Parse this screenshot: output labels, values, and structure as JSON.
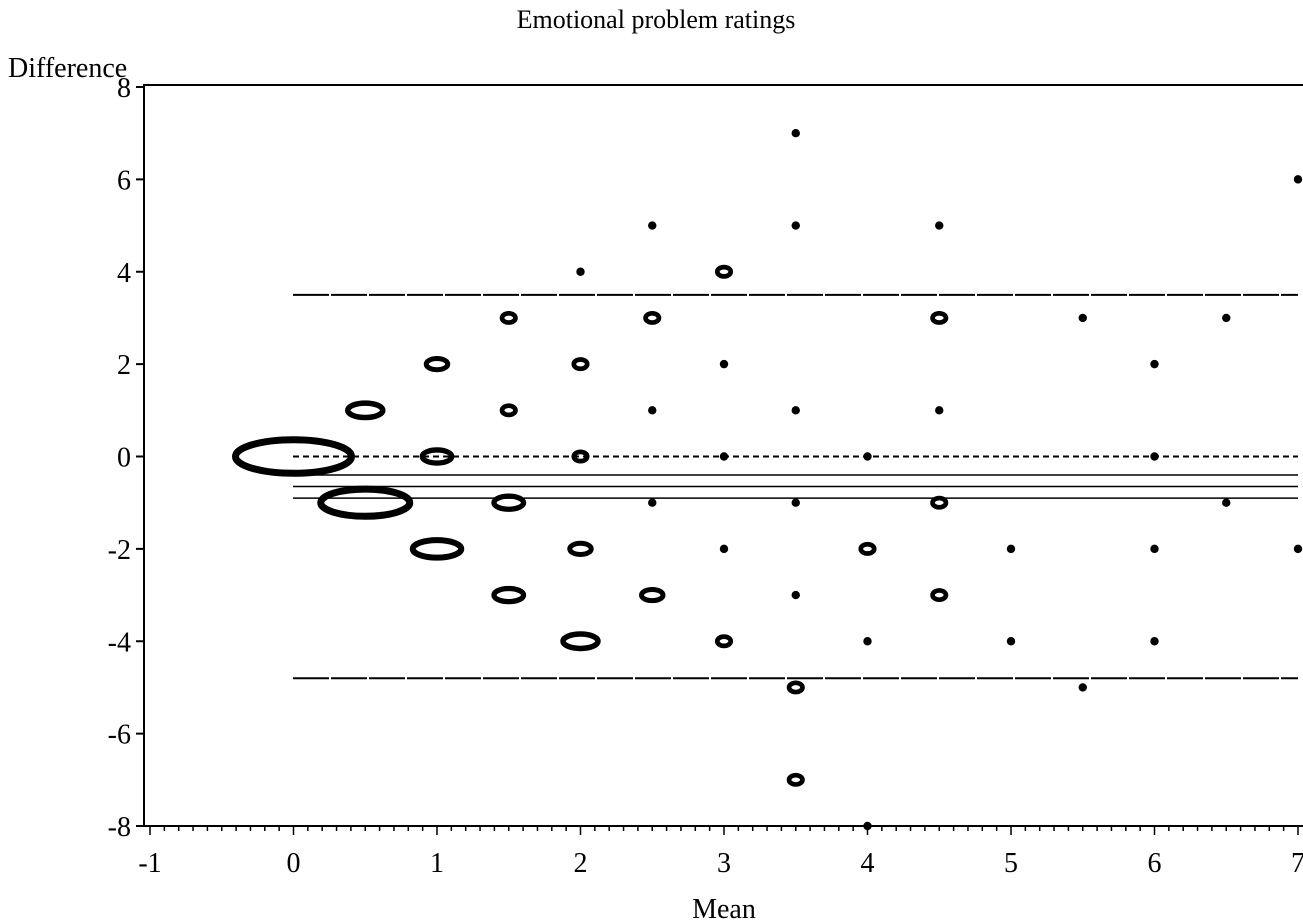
{
  "chart_data": {
    "type": "scatter",
    "title": "Emotional problem ratings",
    "xlabel": "Mean",
    "ylabel": "Difference",
    "xlim": [
      -1,
      7
    ],
    "ylim": [
      -8,
      8
    ],
    "x_ticks": [
      -1,
      0,
      1,
      2,
      3,
      4,
      5,
      6,
      7
    ],
    "y_ticks": [
      -8,
      -6,
      -4,
      -2,
      0,
      2,
      4,
      6,
      8
    ],
    "grid": false,
    "legend": "none",
    "reference_lines": [
      {
        "y": 0,
        "style": "dotted"
      },
      {
        "y": -0.4,
        "style": "solid"
      },
      {
        "y": -0.65,
        "style": "solid"
      },
      {
        "y": -0.9,
        "style": "solid"
      },
      {
        "y": 3.5,
        "style": "long-dash"
      },
      {
        "y": -4.8,
        "style": "long-dash"
      }
    ],
    "points": [
      {
        "x": 0,
        "y": 0,
        "size": 5
      },
      {
        "x": 0.5,
        "y": 1,
        "size": 2
      },
      {
        "x": 0.5,
        "y": -1,
        "size": 4
      },
      {
        "x": 1,
        "y": 2,
        "size": 1.5
      },
      {
        "x": 1,
        "y": 0,
        "size": 1.8
      },
      {
        "x": 1,
        "y": -2,
        "size": 2.5
      },
      {
        "x": 1.5,
        "y": 3,
        "size": 1.2
      },
      {
        "x": 1.5,
        "y": 1,
        "size": 1.2
      },
      {
        "x": 1.5,
        "y": -1,
        "size": 1.8
      },
      {
        "x": 1.5,
        "y": -3,
        "size": 1.8
      },
      {
        "x": 2,
        "y": 4,
        "size": 1
      },
      {
        "x": 2,
        "y": 2,
        "size": 1.2
      },
      {
        "x": 2,
        "y": 0,
        "size": 1.2
      },
      {
        "x": 2,
        "y": -2,
        "size": 1.5
      },
      {
        "x": 2,
        "y": -4,
        "size": 2
      },
      {
        "x": 2.5,
        "y": 5,
        "size": 1
      },
      {
        "x": 2.5,
        "y": 3,
        "size": 1.2
      },
      {
        "x": 2.5,
        "y": 1,
        "size": 1
      },
      {
        "x": 2.5,
        "y": -1,
        "size": 1
      },
      {
        "x": 2.5,
        "y": -3,
        "size": 1.5
      },
      {
        "x": 3,
        "y": 4,
        "size": 1.2
      },
      {
        "x": 3,
        "y": 2,
        "size": 1
      },
      {
        "x": 3,
        "y": 0,
        "size": 1
      },
      {
        "x": 3,
        "y": -2,
        "size": 1
      },
      {
        "x": 3,
        "y": -4,
        "size": 1.2
      },
      {
        "x": 3.5,
        "y": 7,
        "size": 1
      },
      {
        "x": 3.5,
        "y": 5,
        "size": 1
      },
      {
        "x": 3.5,
        "y": 1,
        "size": 1
      },
      {
        "x": 3.5,
        "y": -1,
        "size": 1
      },
      {
        "x": 3.5,
        "y": -3,
        "size": 1
      },
      {
        "x": 3.5,
        "y": -5,
        "size": 1.2
      },
      {
        "x": 3.5,
        "y": -7,
        "size": 1.2
      },
      {
        "x": 4,
        "y": 0,
        "size": 1
      },
      {
        "x": 4,
        "y": -2,
        "size": 1.2
      },
      {
        "x": 4,
        "y": -4,
        "size": 1
      },
      {
        "x": 4,
        "y": -8,
        "size": 1
      },
      {
        "x": 4.5,
        "y": 5,
        "size": 1
      },
      {
        "x": 4.5,
        "y": 3,
        "size": 1.2
      },
      {
        "x": 4.5,
        "y": 1,
        "size": 1
      },
      {
        "x": 4.5,
        "y": -1,
        "size": 1.2
      },
      {
        "x": 4.5,
        "y": -3,
        "size": 1.2
      },
      {
        "x": 5,
        "y": -2,
        "size": 1
      },
      {
        "x": 5,
        "y": -4,
        "size": 1
      },
      {
        "x": 5.5,
        "y": 3,
        "size": 1
      },
      {
        "x": 5.5,
        "y": -5,
        "size": 1
      },
      {
        "x": 6,
        "y": 2,
        "size": 1
      },
      {
        "x": 6,
        "y": 0,
        "size": 1
      },
      {
        "x": 6,
        "y": -2,
        "size": 1
      },
      {
        "x": 6,
        "y": -4,
        "size": 1
      },
      {
        "x": 6.5,
        "y": 3,
        "size": 1
      },
      {
        "x": 6.5,
        "y": -1,
        "size": 1
      },
      {
        "x": 7,
        "y": 6,
        "size": 1
      },
      {
        "x": 7,
        "y": -2,
        "size": 1
      }
    ]
  }
}
